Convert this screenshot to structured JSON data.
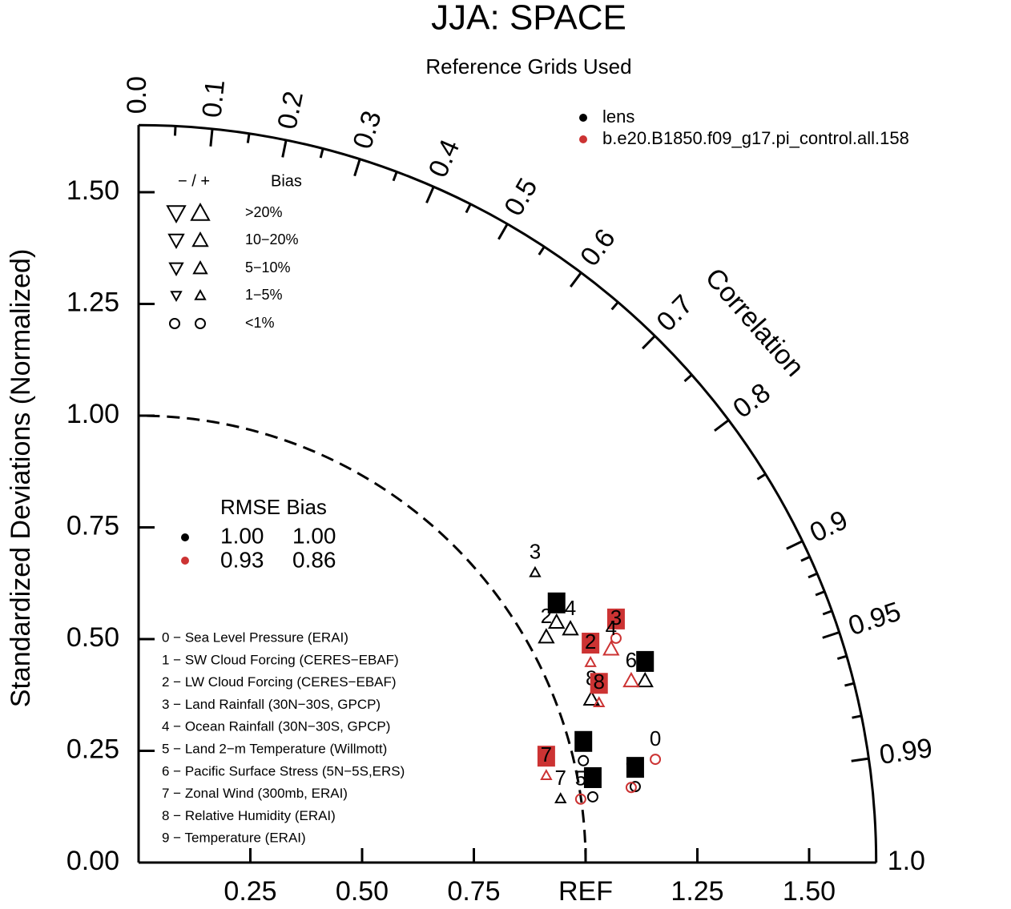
{
  "chart_data": {
    "type": "taylor",
    "title": "JJA: SPACE",
    "subtitle": "Reference Grids Used",
    "ylabel": "Standardized Deviations (Normalized)",
    "corr_label": "Correlation",
    "rlim": [
      0,
      1.65
    ],
    "ref_std": 1,
    "yticks": [
      {
        "value": 0,
        "label": "0.00"
      },
      {
        "value": 0.25,
        "label": "0.25"
      },
      {
        "value": 0.5,
        "label": "0.50"
      },
      {
        "value": 0.75,
        "label": "0.75"
      },
      {
        "value": 1,
        "label": "1.00"
      },
      {
        "value": 1.25,
        "label": "1.25"
      },
      {
        "value": 1.5,
        "label": "1.50"
      }
    ],
    "xticks": [
      {
        "value": 0.25,
        "label": "0.25"
      },
      {
        "value": 0.5,
        "label": "0.50"
      },
      {
        "value": 0.75,
        "label": "0.75"
      },
      {
        "value": 1,
        "label": "REF"
      },
      {
        "value": 1.25,
        "label": "1.25"
      },
      {
        "value": 1.5,
        "label": "1.50"
      }
    ],
    "corr_ticks": [
      {
        "value": 0,
        "label": "0.0"
      },
      0.1,
      0.2,
      0.3,
      0.4,
      0.5,
      0.6,
      0.7,
      0.8,
      0.9,
      0.95,
      0.99,
      {
        "value": 1,
        "label": "1.0"
      }
    ],
    "corr_minor_ticks": [
      0.05,
      0.15,
      0.25,
      0.35,
      0.45,
      0.55,
      0.65,
      0.75,
      0.85,
      0.91,
      0.92,
      0.93,
      0.94,
      0.96,
      0.97,
      0.98
    ],
    "series": [
      {
        "name": "lens",
        "color": "#000000",
        "x": [
          0.995,
          0.935,
          0.912,
          0.887,
          0.966,
          1.016,
          1.133,
          0.944,
          1.013,
          1.111
        ],
        "y": [
          0.228,
          0.538,
          0.505,
          0.649,
          0.523,
          0.147,
          0.407,
          0.143,
          0.366,
          0.17
        ],
        "labels": [
          "0",
          "1",
          "2",
          "3",
          "4",
          "5",
          "6",
          "7",
          "8",
          "9"
        ],
        "markers": [
          "circle",
          "tri-up",
          "tri-up",
          "tri-up",
          "tri-up",
          "circle",
          "tri-up",
          "tri-up",
          "tri-up",
          "circle"
        ],
        "bias_class": [
          4,
          1,
          1,
          3,
          1,
          4,
          1,
          3,
          1,
          4
        ],
        "boxed": [
          true,
          true,
          false,
          false,
          false,
          true,
          true,
          false,
          false,
          true
        ]
      },
      {
        "name": "b.e20.B1850.f09_g17.pi_control.all.158",
        "color": "#cc3333",
        "x": [
          1.156,
          1.011,
          1.068,
          1.057,
          0.989,
          1.102,
          0.912,
          1.03,
          1.102
        ],
        "y": [
          0.231,
          0.448,
          0.502,
          0.478,
          0.142,
          0.407,
          0.195,
          0.358,
          0.168
        ],
        "labels": [
          "0",
          "2",
          "3",
          "4",
          "5",
          "6",
          "7",
          "8",
          "9"
        ],
        "markers": [
          "circle",
          "tri-up",
          "circle",
          "tri-up",
          "circle",
          "tri-up",
          "tri-up",
          "tri-up",
          "circle"
        ],
        "bias_class": [
          4,
          3,
          4,
          1,
          4,
          1,
          3,
          3,
          4
        ],
        "boxed": [
          false,
          true,
          true,
          false,
          false,
          false,
          true,
          true,
          false
        ]
      }
    ],
    "bias_legend": {
      "header": "− / +",
      "title": "Bias",
      "rows": [
        ">20%",
        "10−20%",
        "5−10%",
        "1−5%",
        "<1%"
      ]
    },
    "rmse_legend": {
      "title": "RMSE Bias",
      "rows": [
        [
          "1.00",
          "1.00"
        ],
        [
          "0.93",
          "0.86"
        ]
      ]
    },
    "variables": [
      "0 − Sea Level Pressure (ERAI)",
      "1 − SW Cloud Forcing (CERES−EBAF)",
      "2 − LW Cloud Forcing (CERES−EBAF)",
      "3 − Land Rainfall (30N−30S, GPCP)",
      "4 − Ocean Rainfall (30N−30S, GPCP)",
      "5 − Land 2−m Temperature (Willmott)",
      "6 − Pacific Surface Stress (5N−5S,ERS)",
      "7 − Zonal Wind (300mb, ERAI)",
      "8 − Relative Humidity (ERAI)",
      "9 − Temperature (ERAI)"
    ]
  }
}
